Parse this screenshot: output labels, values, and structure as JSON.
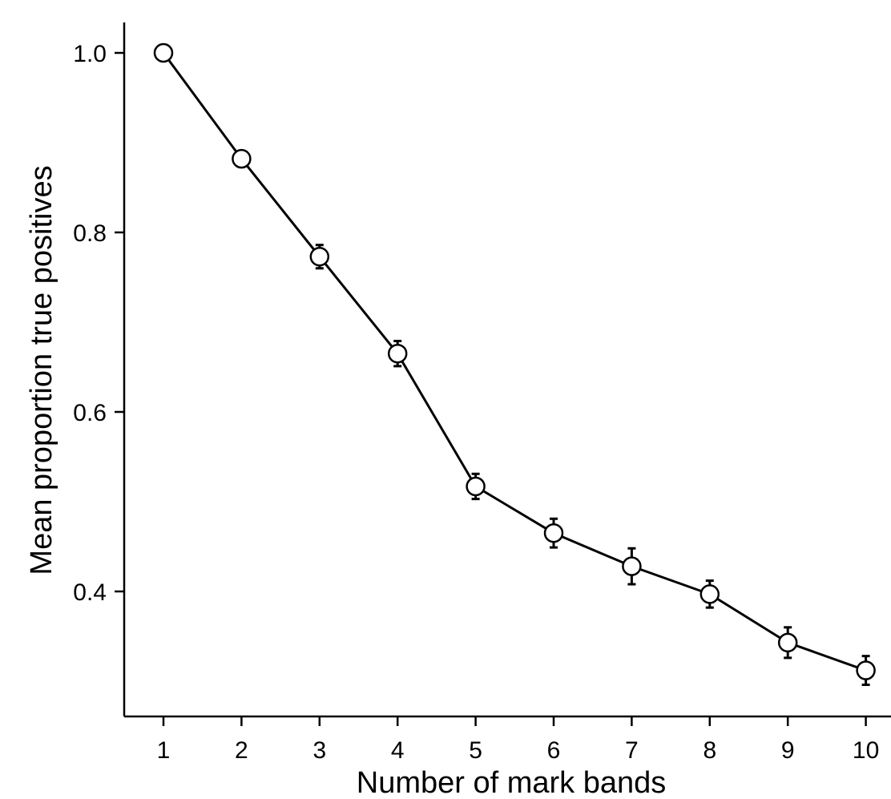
{
  "chart_data": {
    "type": "line",
    "title": "",
    "xlabel": "Number of mark bands",
    "ylabel": "Mean proportion true positives",
    "x": [
      1,
      2,
      3,
      4,
      5,
      6,
      7,
      8,
      9,
      10
    ],
    "x_ticks": [
      "1",
      "2",
      "3",
      "4",
      "5",
      "6",
      "7",
      "8",
      "9",
      "10"
    ],
    "y_ticks": [
      "0.4",
      "0.6",
      "0.8",
      "1.0"
    ],
    "xlim": [
      0.5,
      10.5
    ],
    "ylim": [
      0.293,
      1.034
    ],
    "grid": false,
    "legend": "none",
    "series": [
      {
        "values": [
          1.0,
          0.882,
          0.773,
          0.665,
          0.517,
          0.465,
          0.428,
          0.397,
          0.343,
          0.312
        ],
        "error": [
          0.0,
          0.0,
          0.013,
          0.014,
          0.014,
          0.016,
          0.02,
          0.015,
          0.017,
          0.016
        ],
        "color": "#000000",
        "marker": "open-circle"
      }
    ]
  }
}
